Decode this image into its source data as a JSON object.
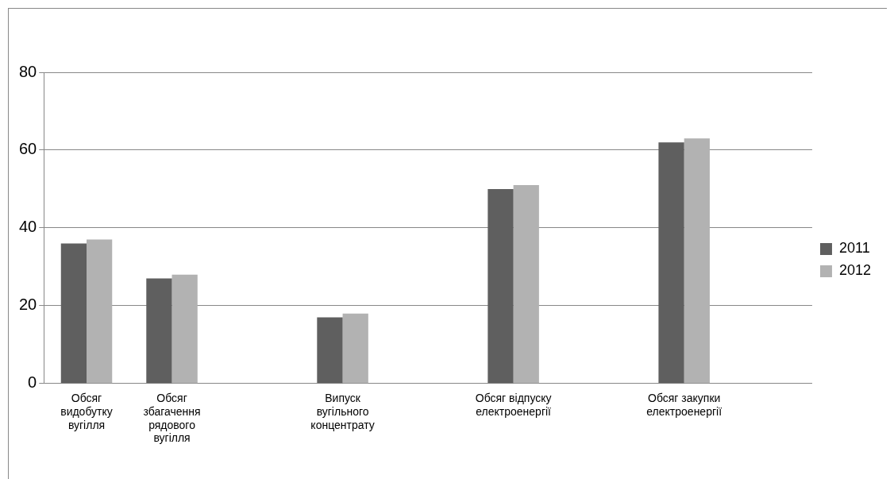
{
  "chart_data": {
    "type": "bar",
    "categories": [
      [
        "Обсяг",
        "видобутку",
        "вугілля"
      ],
      [
        "Обсяг",
        "збагачення",
        "рядового",
        "вугілля"
      ],
      null,
      [
        "Випуск",
        "вугільного",
        "концентрату"
      ],
      null,
      [
        "Обсяг відпуску",
        "електроенергії"
      ],
      null,
      [
        "Обсяг закупки",
        "електроенергії"
      ],
      null
    ],
    "series": [
      {
        "name": "2011",
        "color": "#5f5f5f",
        "values": [
          36,
          27,
          null,
          17,
          null,
          50,
          null,
          62,
          null
        ]
      },
      {
        "name": "2012",
        "color": "#b2b2b2",
        "values": [
          37,
          28,
          null,
          18,
          null,
          51,
          null,
          63,
          null
        ]
      }
    ],
    "ylim": [
      0,
      80
    ],
    "yticks": [
      0,
      20,
      40,
      60,
      80
    ],
    "grid": "y",
    "legend": "right"
  }
}
